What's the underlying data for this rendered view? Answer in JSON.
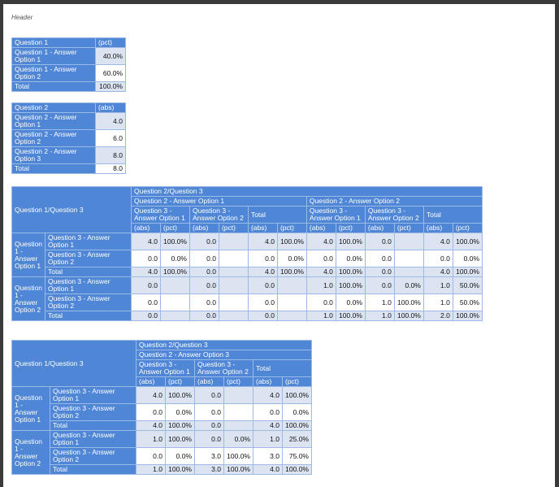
{
  "header_label": "Header",
  "colors": {
    "header_bg": "#4f86d6",
    "shaded_cell": "#dbe4f0",
    "border": "#9bbbe6"
  },
  "simple_tables": [
    {
      "title": "Question 1",
      "measure": "(pct)",
      "rows": [
        {
          "label": "Question 1 - Answer Option 1",
          "value": "40.0%"
        },
        {
          "label": "Question 1 - Answer Option 2",
          "value": "60.0%"
        }
      ],
      "total_label": "Total",
      "total_value": "100.0%"
    },
    {
      "title": "Question 2",
      "measure": "(abs)",
      "rows": [
        {
          "label": "Question 2 - Answer Option 1",
          "value": "4.0"
        },
        {
          "label": "Question 2 - Answer Option 2",
          "value": "6.0"
        },
        {
          "label": "Question 2 - Answer Option 3",
          "value": "8.0"
        }
      ],
      "total_label": "Total",
      "total_value": "8.0"
    }
  ],
  "crosstabs": [
    {
      "corner": "Question 1/Question 3",
      "col_title": "Question 2/Question 3",
      "groups": [
        "Question 2 - Answer Option 1",
        "Question 2 - Answer Option 2"
      ],
      "subcols": [
        "Question 3 - Answer Option 1",
        "Question 3 - Answer Option 2",
        "Total"
      ],
      "measures": [
        "(abs)",
        "(pct)"
      ],
      "row_groups": [
        {
          "label": "Question 1 - Answer Option 1",
          "rows": [
            {
              "label": "Question 3 - Answer Option 1",
              "cells": [
                "4.0",
                "100.0%",
                "0.0",
                "",
                "4.0",
                "100.0%",
                "4.0",
                "100.0%",
                "0.0",
                "",
                "4.0",
                "100.0%"
              ]
            },
            {
              "label": "Question 3 - Answer Option 2",
              "cells": [
                "0.0",
                "0.0%",
                "0.0",
                "",
                "0.0",
                "0.0%",
                "0.0",
                "0.0%",
                "0.0",
                "",
                "0.0",
                "0.0%"
              ]
            },
            {
              "label": "Total",
              "cells": [
                "4.0",
                "100.0%",
                "0.0",
                "",
                "4.0",
                "100.0%",
                "4.0",
                "100.0%",
                "0.0",
                "",
                "4.0",
                "100.0%"
              ]
            }
          ]
        },
        {
          "label": "Question 1 - Answer Option 2",
          "rows": [
            {
              "label": "Question 3 - Answer Option 1",
              "cells": [
                "0.0",
                "",
                "0.0",
                "",
                "0.0",
                "",
                "1.0",
                "100.0%",
                "0.0",
                "0.0%",
                "1.0",
                "50.0%"
              ]
            },
            {
              "label": "Question 3 - Answer Option 2",
              "cells": [
                "0.0",
                "",
                "0.0",
                "",
                "0.0",
                "",
                "0.0",
                "0.0%",
                "1.0",
                "100.0%",
                "1.0",
                "50.0%"
              ]
            },
            {
              "label": "Total",
              "cells": [
                "0.0",
                "",
                "0.0",
                "",
                "0.0",
                "",
                "1.0",
                "100.0%",
                "1.0",
                "100.0%",
                "2.0",
                "100.0%"
              ]
            }
          ]
        }
      ]
    },
    {
      "corner": "Question 1/Question 3",
      "col_title": "Question 2/Question 3",
      "groups": [
        "Question 2 - Answer Option 3"
      ],
      "subcols": [
        "Question 3 - Answer Option 1",
        "Question 3 - Answer Option 2",
        "Total"
      ],
      "measures": [
        "(abs)",
        "(pct)"
      ],
      "row_groups": [
        {
          "label": "Question 1 - Answer Option 1",
          "rows": [
            {
              "label": "Question 3 - Answer Option 1",
              "cells": [
                "4.0",
                "100.0%",
                "0.0",
                "",
                "4.0",
                "100.0%"
              ]
            },
            {
              "label": "Question 3 - Answer Option 2",
              "cells": [
                "0.0",
                "0.0%",
                "0.0",
                "",
                "0.0",
                "0.0%"
              ]
            },
            {
              "label": "Total",
              "cells": [
                "4.0",
                "100.0%",
                "0.0",
                "",
                "4.0",
                "100.0%"
              ]
            }
          ]
        },
        {
          "label": "Question 1 - Answer Option 2",
          "rows": [
            {
              "label": "Question 3 - Answer Option 1",
              "cells": [
                "1.0",
                "100.0%",
                "0.0",
                "0.0%",
                "1.0",
                "25.0%"
              ]
            },
            {
              "label": "Question 3 - Answer Option 2",
              "cells": [
                "0.0",
                "0.0%",
                "3.0",
                "100.0%",
                "3.0",
                "75.0%"
              ]
            },
            {
              "label": "Total",
              "cells": [
                "1.0",
                "100.0%",
                "3.0",
                "100.0%",
                "4.0",
                "100.0%"
              ]
            }
          ]
        }
      ]
    }
  ]
}
